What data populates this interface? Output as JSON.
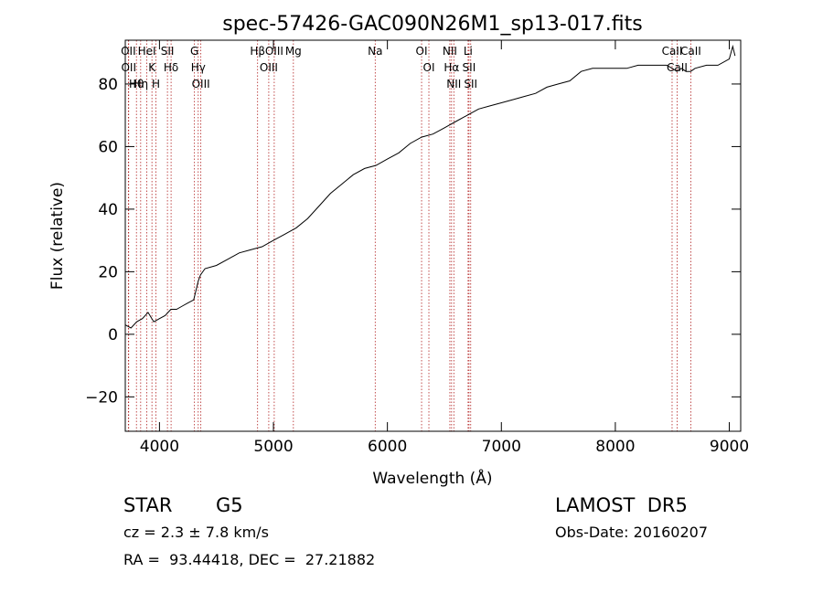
{
  "chart_data": {
    "type": "line",
    "title": "spec-57426-GAC090N26M1_sp13-017.fits",
    "xlabel": "Wavelength (Å)",
    "ylabel": "Flux (relative)",
    "xlim": [
      3700,
      9100
    ],
    "ylim": [
      -31,
      94
    ],
    "x_ticks": [
      4000,
      5000,
      6000,
      7000,
      8000,
      9000
    ],
    "y_ticks": [
      -20,
      0,
      20,
      40,
      60,
      80
    ],
    "x_tick_labels": [
      "4000",
      "5000",
      "6000",
      "7000",
      "8000",
      "9000"
    ],
    "y_tick_labels": [
      "−20",
      "0",
      "20",
      "40",
      "60",
      "80"
    ],
    "grid": false,
    "series": [
      {
        "color": "#000000",
        "x": [
          3700,
          3750,
          3800,
          3850,
          3900,
          3950,
          4000,
          4050,
          4100,
          4150,
          4200,
          4250,
          4300,
          4340,
          4360,
          4400,
          4500,
          4600,
          4700,
          4800,
          4900,
          5000,
          5100,
          5200,
          5300,
          5400,
          5500,
          5600,
          5700,
          5800,
          5900,
          6000,
          6100,
          6200,
          6300,
          6400,
          6500,
          6550,
          6600,
          6700,
          6800,
          6900,
          7000,
          7100,
          7200,
          7300,
          7400,
          7500,
          7600,
          7700,
          7800,
          7900,
          8000,
          8100,
          8200,
          8300,
          8400,
          8450,
          8500,
          8540,
          8580,
          8620,
          8660,
          8700,
          8800,
          8900,
          9000,
          9030,
          9050
        ],
        "y": [
          3,
          2,
          4,
          5,
          7,
          4,
          5,
          6,
          8,
          8,
          9,
          10,
          11,
          17,
          19,
          21,
          22,
          24,
          26,
          27,
          28,
          30,
          32,
          34,
          37,
          41,
          45,
          48,
          51,
          53,
          54,
          56,
          58,
          61,
          63,
          64,
          66,
          67,
          68,
          70,
          72,
          73,
          74,
          75,
          76,
          77,
          79,
          80,
          81,
          84,
          85,
          85,
          85,
          85,
          86,
          86,
          86,
          86,
          85,
          84,
          85,
          84,
          84,
          85,
          86,
          86,
          88,
          92,
          89
        ]
      }
    ],
    "spectral_lines": [
      {
        "name": "Hθ",
        "wavelength": 3798
      },
      {
        "name": "OII",
        "wavelength": 3727
      },
      {
        "name": "OII",
        "wavelength": 3730
      },
      {
        "name": "K",
        "wavelength": 3934
      },
      {
        "name": "HeI",
        "wavelength": 3889
      },
      {
        "name": "Hη",
        "wavelength": 3835
      },
      {
        "name": "H",
        "wavelength": 3969
      },
      {
        "name": "Hδ",
        "wavelength": 4102
      },
      {
        "name": "SII",
        "wavelength": 4070
      },
      {
        "name": "OIII",
        "wavelength": 4363
      },
      {
        "name": "Hγ",
        "wavelength": 4340
      },
      {
        "name": "G",
        "wavelength": 4307
      },
      {
        "name": "Hβ",
        "wavelength": 4861
      },
      {
        "name": "OIII",
        "wavelength": 5007
      },
      {
        "name": "OIII",
        "wavelength": 4959
      },
      {
        "name": "Mg",
        "wavelength": 5175
      },
      {
        "name": "Na",
        "wavelength": 5893
      },
      {
        "name": "OI",
        "wavelength": 6300
      },
      {
        "name": "OI",
        "wavelength": 6364
      },
      {
        "name": "Hα",
        "wavelength": 6563
      },
      {
        "name": "NII",
        "wavelength": 6548
      },
      {
        "name": "NII",
        "wavelength": 6583
      },
      {
        "name": "SII",
        "wavelength": 6716
      },
      {
        "name": "Li",
        "wavelength": 6708
      },
      {
        "name": "SII",
        "wavelength": 6731
      },
      {
        "name": "CaII",
        "wavelength": 8542
      },
      {
        "name": "CaII",
        "wavelength": 8498
      },
      {
        "name": "CaII",
        "wavelength": 8662
      }
    ]
  },
  "footer": {
    "object_class": "STAR",
    "subclass": "G5",
    "survey": "LAMOST  DR5",
    "cz": "cz = 2.3 ± 7.8 km/s",
    "obs_date": "Obs-Date: 20160207",
    "coords": "RA =  93.44418, DEC =  27.21882"
  },
  "colors": {
    "line_marker": "#b22222",
    "spectrum": "#000000",
    "axes": "#000000"
  }
}
